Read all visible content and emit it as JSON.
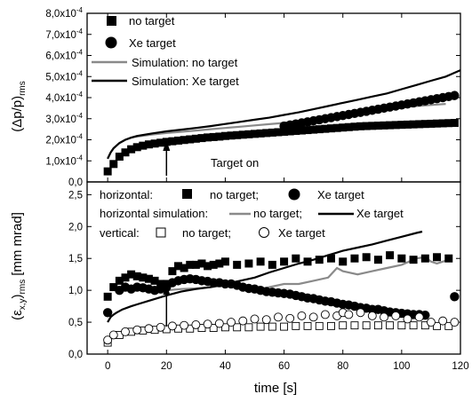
{
  "chart_data": [
    {
      "type": "scatter",
      "ylabel": "(Δp/p)",
      "ylabel_sub": "rms",
      "xlim": [
        -7,
        120
      ],
      "ylim": [
        0,
        0.0008
      ],
      "ytick_labels": [
        "0,0",
        "1,0x10",
        "2,0x10",
        "3,0x10",
        "4,0x10",
        "5,0x10",
        "6,0x10",
        "7,0x10",
        "8,0x10"
      ],
      "ytick_values": [
        0,
        0.0001,
        0.0002,
        0.0003,
        0.0004,
        0.0005,
        0.0006,
        0.0007,
        0.0008
      ],
      "ytick_exponent": "-4",
      "annotation": {
        "text": "Target on",
        "x": 20
      },
      "legend_position": "top-left",
      "series": [
        {
          "name": "no target",
          "marker": "filled-square",
          "x": [
            0,
            2,
            4,
            6,
            8,
            10,
            12,
            14,
            16,
            18,
            20,
            22,
            24,
            26,
            28,
            30,
            32,
            34,
            36,
            38,
            40,
            42,
            44,
            46,
            48,
            50,
            52,
            54,
            56,
            58,
            60,
            62,
            64,
            66,
            68,
            70,
            72,
            74,
            76,
            78,
            80,
            82,
            84,
            86,
            88,
            90,
            92,
            94,
            96,
            98,
            100,
            102,
            104,
            106,
            108,
            110,
            112,
            114,
            116,
            118
          ],
          "y": [
            5e-05,
            8.5e-05,
            0.00012,
            0.00014,
            0.000155,
            0.000165,
            0.000172,
            0.000178,
            0.000182,
            0.000186,
            0.00019,
            0.000193,
            0.000196,
            0.000199,
            0.000202,
            0.000205,
            0.000208,
            0.000211,
            0.000213,
            0.000215,
            0.000218,
            0.00022,
            0.000222,
            0.000224,
            0.000226,
            0.000228,
            0.00023,
            0.000232,
            0.000234,
            0.000236,
            0.000238,
            0.00024,
            0.000242,
            0.000244,
            0.000246,
            0.000248,
            0.00025,
            0.000252,
            0.000254,
            0.000256,
            0.000258,
            0.00026,
            0.000262,
            0.000264,
            0.000265,
            0.000266,
            0.000267,
            0.000268,
            0.000269,
            0.00027,
            0.000271,
            0.000272,
            0.000273,
            0.000274,
            0.000275,
            0.000276,
            0.000277,
            0.000278,
            0.000279,
            0.00028
          ]
        },
        {
          "name": "Xe target",
          "marker": "filled-circle",
          "x": [
            60,
            62,
            64,
            66,
            68,
            70,
            72,
            74,
            76,
            78,
            80,
            82,
            84,
            86,
            88,
            90,
            92,
            94,
            96,
            98,
            100,
            102,
            104,
            106,
            108,
            110,
            112,
            114,
            116,
            118
          ],
          "y": [
            0.000265,
            0.00027,
            0.000275,
            0.00028,
            0.000285,
            0.00029,
            0.000295,
            0.0003,
            0.000305,
            0.00031,
            0.000315,
            0.00032,
            0.000325,
            0.00033,
            0.000335,
            0.00034,
            0.000345,
            0.00035,
            0.000355,
            0.00036,
            0.000365,
            0.00037,
            0.000375,
            0.00038,
            0.000385,
            0.00039,
            0.000395,
            0.0004,
            0.000405,
            0.00041
          ]
        },
        {
          "name": "Simulation: no target",
          "type": "line",
          "color": "#8a8a8a",
          "x": [
            0,
            1,
            2,
            4,
            6,
            8,
            10,
            15,
            20,
            25,
            30,
            35,
            40,
            45,
            50,
            55,
            60,
            65,
            70,
            75,
            80,
            85,
            90,
            95,
            100,
            105,
            110,
            115
          ],
          "y": [
            0.00011,
            0.00014,
            0.00016,
            0.000185,
            0.0002,
            0.00021,
            0.000215,
            0.000225,
            0.000232,
            0.000238,
            0.000244,
            0.00025,
            0.000256,
            0.000262,
            0.000268,
            0.000274,
            0.00028,
            0.000288,
            0.000295,
            0.000305,
            0.00032,
            0.000335,
            0.00034,
            0.00035,
            0.000355,
            0.00036,
            0.000365,
            0.00037
          ]
        },
        {
          "name": "Simulation: Xe target",
          "type": "line",
          "color": "#000000",
          "x": [
            0,
            1,
            2,
            4,
            6,
            8,
            10,
            15,
            20,
            25,
            30,
            35,
            40,
            45,
            50,
            55,
            60,
            65,
            70,
            75,
            80,
            85,
            90,
            95,
            100,
            105,
            110,
            115,
            120
          ],
          "y": [
            0.00011,
            0.00014,
            0.00016,
            0.000185,
            0.0002,
            0.00021,
            0.000218,
            0.00023,
            0.00024,
            0.000248,
            0.000256,
            0.000265,
            0.000275,
            0.000285,
            0.000295,
            0.000305,
            0.000318,
            0.00033,
            0.000345,
            0.00036,
            0.000375,
            0.00039,
            0.000405,
            0.00042,
            0.00044,
            0.00046,
            0.00048,
            0.0005,
            0.00053
          ]
        }
      ]
    },
    {
      "type": "scatter",
      "ylabel": "(ε",
      "ylabel_sub": "x,y",
      "ylabel_rest": ")",
      "ylabel_sub2": "rms",
      "ylabel_unit": "[mm mrad]",
      "xlabel": "time [s]",
      "xlim": [
        -7,
        120
      ],
      "ylim": [
        0,
        2.7
      ],
      "xtick_values": [
        0,
        20,
        40,
        60,
        80,
        100,
        120
      ],
      "xtick_labels": [
        "0",
        "20",
        "40",
        "60",
        "80",
        "100",
        "120"
      ],
      "ytick_values": [
        0,
        0.5,
        1.0,
        1.5,
        2.0,
        2.5
      ],
      "ytick_labels": [
        "0,0",
        "0,5",
        "1,0",
        "1,5",
        "2,0",
        "2,5"
      ],
      "legend_position": "top",
      "legend": {
        "row1_label": "horizontal:",
        "row1_a": "no target;",
        "row1_b": "Xe target",
        "row2_label": "horizontal simulation:",
        "row2_a": "no target;",
        "row2_b": "Xe target",
        "row3_label": "vertical:",
        "row3_a": "no target;",
        "row3_b": "Xe target"
      },
      "series": [
        {
          "name": "horizontal no target",
          "marker": "filled-square",
          "x": [
            0,
            2,
            4,
            6,
            8,
            10,
            12,
            14,
            16,
            18,
            20,
            22,
            24,
            26,
            28,
            30,
            32,
            34,
            36,
            38,
            40,
            44,
            48,
            52,
            56,
            60,
            64,
            68,
            72,
            76,
            80,
            84,
            88,
            92,
            96,
            100,
            104,
            108,
            112,
            116
          ],
          "y": [
            0.9,
            1.05,
            1.15,
            1.2,
            1.25,
            1.22,
            1.2,
            1.18,
            1.15,
            1.1,
            1.1,
            1.3,
            1.38,
            1.35,
            1.4,
            1.4,
            1.42,
            1.38,
            1.4,
            1.42,
            1.45,
            1.4,
            1.42,
            1.45,
            1.4,
            1.45,
            1.5,
            1.45,
            1.48,
            1.5,
            1.45,
            1.5,
            1.52,
            1.48,
            1.55,
            1.5,
            1.48,
            1.5,
            1.52,
            1.5
          ]
        },
        {
          "name": "horizontal Xe target",
          "marker": "filled-circle",
          "x": [
            0,
            4,
            6,
            8,
            10,
            12,
            14,
            16,
            18,
            20,
            22,
            24,
            26,
            28,
            30,
            32,
            34,
            36,
            38,
            40,
            42,
            44,
            46,
            48,
            50,
            52,
            54,
            56,
            58,
            60,
            62,
            64,
            66,
            68,
            70,
            72,
            74,
            76,
            78,
            80,
            82,
            84,
            86,
            88,
            90,
            92,
            94,
            96,
            98,
            100,
            102,
            104,
            106,
            108,
            118
          ],
          "y": [
            0.65,
            1.0,
            1.05,
            1.02,
            1.05,
            1.04,
            1.02,
            1.0,
            1.02,
            1.05,
            1.12,
            1.15,
            1.17,
            1.18,
            1.17,
            1.15,
            1.14,
            1.12,
            1.12,
            1.1,
            1.1,
            1.08,
            1.05,
            1.03,
            1.02,
            1.0,
            0.98,
            0.97,
            0.96,
            0.95,
            0.94,
            0.92,
            0.9,
            0.88,
            0.87,
            0.85,
            0.83,
            0.82,
            0.8,
            0.78,
            0.77,
            0.75,
            0.73,
            0.72,
            0.7,
            0.7,
            0.68,
            0.66,
            0.65,
            0.64,
            0.63,
            0.62,
            0.62,
            0.61,
            0.9
          ]
        },
        {
          "name": "horizontal simulation no target",
          "type": "line",
          "color": "#8a8a8a",
          "x": [
            20,
            25,
            30,
            35,
            40,
            45,
            50,
            55,
            60,
            65,
            70,
            75,
            78,
            80,
            85,
            90,
            95,
            100,
            105,
            108,
            110,
            112,
            114,
            116
          ],
          "y": [
            1.0,
            1.02,
            1.03,
            1.05,
            1.08,
            1.05,
            1.0,
            1.05,
            1.1,
            1.1,
            1.15,
            1.2,
            1.35,
            1.3,
            1.25,
            1.3,
            1.35,
            1.4,
            1.5,
            1.52,
            1.45,
            1.42,
            1.45,
            1.48
          ]
        },
        {
          "name": "horizontal simulation Xe target",
          "type": "line",
          "color": "#000000",
          "x": [
            0,
            1,
            2,
            3,
            5,
            8,
            10,
            15,
            20,
            25,
            30,
            35,
            40,
            45,
            50,
            55,
            60,
            65,
            70,
            75,
            80,
            85,
            90,
            95,
            100,
            105,
            107
          ],
          "y": [
            0.5,
            0.58,
            0.62,
            0.65,
            0.7,
            0.75,
            0.78,
            0.85,
            0.92,
            0.98,
            1.02,
            1.05,
            1.1,
            1.15,
            1.2,
            1.28,
            1.35,
            1.42,
            1.48,
            1.55,
            1.62,
            1.67,
            1.72,
            1.78,
            1.84,
            1.9,
            1.92
          ]
        },
        {
          "name": "vertical no target",
          "marker": "open-square",
          "x": [
            0,
            4,
            8,
            12,
            16,
            20,
            24,
            28,
            32,
            36,
            40,
            44,
            48,
            52,
            56,
            60,
            64,
            68,
            72,
            76,
            80,
            84,
            88,
            92,
            96,
            100,
            104,
            108,
            112,
            116
          ],
          "y": [
            0.18,
            0.3,
            0.35,
            0.37,
            0.38,
            0.39,
            0.4,
            0.4,
            0.41,
            0.41,
            0.42,
            0.42,
            0.42,
            0.43,
            0.43,
            0.43,
            0.44,
            0.44,
            0.44,
            0.44,
            0.45,
            0.45,
            0.45,
            0.45,
            0.45,
            0.45,
            0.45,
            0.45,
            0.44,
            0.44
          ]
        },
        {
          "name": "vertical Xe target",
          "marker": "open-circle",
          "x": [
            0,
            2,
            6,
            10,
            14,
            18,
            22,
            26,
            30,
            34,
            38,
            42,
            46,
            50,
            54,
            58,
            62,
            66,
            70,
            74,
            78,
            80,
            82,
            86,
            90,
            94,
            98,
            102,
            106,
            110,
            114,
            118
          ],
          "y": [
            0.22,
            0.3,
            0.35,
            0.38,
            0.4,
            0.42,
            0.44,
            0.45,
            0.46,
            0.47,
            0.48,
            0.5,
            0.52,
            0.55,
            0.54,
            0.58,
            0.56,
            0.6,
            0.58,
            0.62,
            0.6,
            0.65,
            0.62,
            0.65,
            0.6,
            0.58,
            0.6,
            0.55,
            0.58,
            0.5,
            0.52,
            0.5
          ]
        }
      ]
    }
  ],
  "legend_top": {
    "items": [
      "no target",
      "Xe target",
      "Simulation: no target",
      "Simulation: Xe target"
    ]
  }
}
